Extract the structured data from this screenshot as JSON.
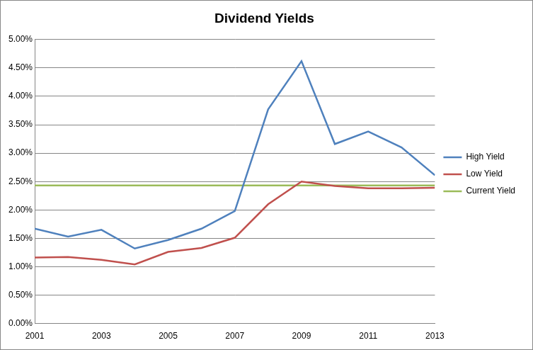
{
  "chart_data": {
    "type": "line",
    "title": "Dividend Yields",
    "x": [
      2001,
      2002,
      2003,
      2004,
      2005,
      2006,
      2007,
      2008,
      2009,
      2010,
      2011,
      2012,
      2013
    ],
    "xlim": [
      2001,
      2013
    ],
    "xticks": [
      2001,
      2003,
      2005,
      2007,
      2009,
      2011,
      2013
    ],
    "ylim": [
      0,
      5
    ],
    "yticks": [
      {
        "value": 0,
        "label": "0.00%"
      },
      {
        "value": 0.5,
        "label": "0.50%"
      },
      {
        "value": 1,
        "label": "1.00%"
      },
      {
        "value": 1.5,
        "label": "1.50%"
      },
      {
        "value": 2,
        "label": "2.00%"
      },
      {
        "value": 2.5,
        "label": "2.50%"
      },
      {
        "value": 3,
        "label": "3.00%"
      },
      {
        "value": 3.5,
        "label": "3.50%"
      },
      {
        "value": 4,
        "label": "4.00%"
      },
      {
        "value": 4.5,
        "label": "4.50%"
      },
      {
        "value": 5,
        "label": "5.00%"
      }
    ],
    "grid": true,
    "legend": "right",
    "marker": "none",
    "series": [
      {
        "name": "High Yield",
        "color": "#4f81bd",
        "values": [
          1.67,
          1.53,
          1.65,
          1.32,
          1.47,
          1.67,
          1.98,
          3.77,
          4.62,
          3.16,
          3.38,
          3.1,
          2.61
        ]
      },
      {
        "name": "Low Yield",
        "color": "#c0504d",
        "values": [
          1.16,
          1.17,
          1.12,
          1.04,
          1.26,
          1.33,
          1.51,
          2.1,
          2.5,
          2.42,
          2.38,
          2.38,
          2.39
        ]
      },
      {
        "name": "Current Yield",
        "color": "#9bbb59",
        "values": [
          2.43,
          2.43,
          2.43,
          2.43,
          2.43,
          2.43,
          2.43,
          2.43,
          2.43,
          2.43,
          2.43,
          2.43,
          2.43
        ]
      }
    ]
  }
}
